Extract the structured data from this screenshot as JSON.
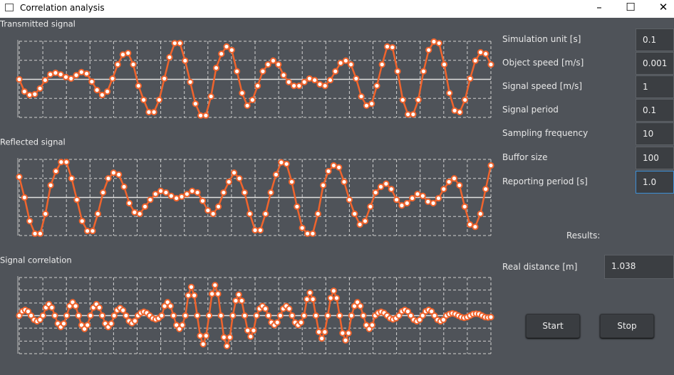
{
  "window": {
    "title": "Correlation analysis"
  },
  "chart_data": [
    {
      "type": "line",
      "title": "Transmitted signal",
      "color": "#f0642d",
      "grid": true,
      "xlim": [
        0,
        91
      ],
      "xticks": [
        0,
        4.55,
        9.1,
        13.65,
        18.2,
        22.75,
        27.3,
        31.85,
        36.4,
        40.95,
        45.5,
        50.05,
        54.6,
        59.15,
        63.7,
        68.25,
        72.8,
        77.35,
        81.9,
        86.45,
        91
      ],
      "ylim": [
        -1,
        1
      ],
      "yticks": [
        -1,
        -0.5,
        0,
        0.5,
        1
      ],
      "values": [
        0,
        -0.32,
        -0.41,
        -0.39,
        -0.24,
        -0.02,
        0.13,
        0.17,
        0.13,
        0.06,
        0.02,
        0.11,
        0.19,
        0.15,
        -0.06,
        -0.28,
        -0.41,
        -0.32,
        0.02,
        0.39,
        0.65,
        0.69,
        0.39,
        -0.17,
        -0.54,
        -0.86,
        -0.86,
        -0.54,
        0.02,
        0.58,
        0.95,
        0.95,
        0.49,
        -0.07,
        -0.64,
        -0.95,
        -0.95,
        -0.45,
        0.3,
        0.67,
        0.86,
        0.77,
        0.21,
        -0.36,
        -0.69,
        -0.54,
        -0.17,
        0.21,
        0.39,
        0.49,
        0.39,
        0.11,
        -0.07,
        -0.17,
        -0.17,
        -0.07,
        0.02,
        -0.02,
        -0.13,
        -0.17,
        -0.02,
        0.21,
        0.43,
        0.49,
        0.39,
        0.02,
        -0.45,
        -0.69,
        -0.64,
        -0.17,
        0.39,
        0.86,
        0.84,
        0.21,
        -0.54,
        -0.92,
        -0.92,
        -0.54,
        0.21,
        0.77,
        0.99,
        0.95,
        0.39,
        -0.36,
        -0.82,
        -0.86,
        -0.54,
        0.02,
        0.49,
        0.71,
        0.67,
        0.39
      ]
    },
    {
      "type": "line",
      "title": "Reflected signal",
      "color": "#f0642d",
      "grid": true,
      "xlim": [
        0,
        90
      ],
      "xticks": [
        0,
        4.5,
        9,
        13.5,
        18,
        22.5,
        27,
        31.5,
        36,
        40.5,
        45,
        49.5,
        54,
        58.5,
        63,
        67.5,
        72,
        76.5,
        81,
        85.5,
        90
      ],
      "ylim": [
        -1,
        1
      ],
      "yticks": [
        -1,
        -0.5,
        0,
        0.5,
        1
      ],
      "values": [
        0.54,
        0,
        -0.62,
        -0.95,
        -0.95,
        -0.43,
        0.32,
        0.69,
        0.93,
        0.93,
        0.5,
        -0.06,
        -0.62,
        -0.88,
        -0.88,
        -0.43,
        0.13,
        0.5,
        0.65,
        0.6,
        0.28,
        -0.15,
        -0.39,
        -0.43,
        -0.24,
        -0.06,
        0.09,
        0.17,
        0.13,
        0.04,
        -0.02,
        0.02,
        0.09,
        0.17,
        0.13,
        -0.09,
        -0.34,
        -0.43,
        -0.24,
        0.13,
        0.41,
        0.65,
        0.5,
        0.13,
        -0.43,
        -0.86,
        -0.86,
        -0.43,
        0.13,
        0.6,
        0.92,
        0.88,
        0.41,
        -0.24,
        -0.8,
        -0.95,
        -0.95,
        -0.43,
        0.32,
        0.69,
        0.84,
        0.79,
        0.41,
        -0.06,
        -0.43,
        -0.71,
        -0.62,
        -0.24,
        0.13,
        0.28,
        0.36,
        0.22,
        -0.06,
        -0.21,
        -0.15,
        -0.02,
        0.09,
        0.04,
        -0.11,
        -0.15,
        -0.02,
        0.22,
        0.41,
        0.5,
        0.32,
        -0.24,
        -0.71,
        -0.77,
        -0.43,
        0.22,
        0.84
      ]
    },
    {
      "type": "line",
      "title": "Signal correlation",
      "color": "#f0642d",
      "grid": true,
      "xlim": [
        0,
        159
      ],
      "xticks": [
        0,
        7.95,
        15.9,
        23.85,
        31.8,
        39.75,
        47.7,
        55.65,
        63.6,
        71.55,
        79.5,
        87.45,
        95.4,
        103.35,
        111.3,
        119.25,
        127.2,
        135.15,
        143.1,
        151.05,
        159
      ],
      "ylim": [
        -1,
        1
      ],
      "yticks": [
        -1,
        -0.67,
        -0.33,
        0,
        0.33,
        0.67,
        1
      ],
      "values": [
        0,
        0.11,
        0.15,
        0.11,
        0,
        -0.11,
        -0.15,
        -0.11,
        0,
        0.21,
        0.3,
        0.21,
        0,
        -0.21,
        -0.3,
        -0.21,
        0,
        0.25,
        0.35,
        0.25,
        0,
        -0.25,
        -0.35,
        -0.25,
        0,
        0.21,
        0.3,
        0.21,
        0,
        -0.21,
        -0.3,
        -0.21,
        0,
        0.14,
        0.2,
        0.14,
        0,
        -0.14,
        -0.2,
        -0.14,
        0,
        0.07,
        0.1,
        0.07,
        0,
        -0.07,
        -0.1,
        -0.07,
        0,
        0.25,
        0.35,
        0.25,
        0,
        -0.25,
        -0.35,
        -0.25,
        0,
        0.53,
        0.75,
        0.53,
        0,
        -0.53,
        -0.75,
        -0.53,
        0,
        0.57,
        0.8,
        0.57,
        0,
        -0.57,
        -0.8,
        -0.57,
        0,
        0.39,
        0.55,
        0.39,
        0,
        -0.39,
        -0.55,
        -0.39,
        0,
        0.18,
        0.25,
        0.18,
        0,
        -0.18,
        -0.25,
        -0.18,
        0,
        0.18,
        0.25,
        0.18,
        0,
        -0.18,
        -0.25,
        -0.18,
        0,
        0.43,
        0.6,
        0.43,
        0,
        -0.43,
        -0.6,
        -0.43,
        0,
        0.46,
        0.65,
        0.46,
        0,
        -0.46,
        -0.65,
        -0.46,
        0,
        0.25,
        0.35,
        0.25,
        0,
        -0.25,
        -0.35,
        -0.25,
        0,
        0.07,
        0.1,
        0.07,
        0,
        -0.07,
        -0.1,
        -0.07,
        0,
        0.11,
        0.15,
        0.11,
        0,
        -0.11,
        -0.15,
        -0.11,
        0,
        0.11,
        0.15,
        0.11,
        0,
        -0.11,
        -0.15,
        -0.11,
        0,
        0.04,
        0.06,
        0.04,
        0,
        -0.04,
        -0.06,
        -0.04,
        0,
        0.04,
        0.05,
        0.04,
        0,
        -0.04,
        -0.05,
        -0.04
      ]
    }
  ],
  "form": {
    "fields": [
      {
        "label": "Simulation unit [s]",
        "value": "0.1"
      },
      {
        "label": "Object speed [m/s]",
        "value": "0.001"
      },
      {
        "label": "Signal speed [m/s]",
        "value": "1"
      },
      {
        "label": "Signal period",
        "value": "0.1"
      },
      {
        "label": "Sampling frequency",
        "value": "10"
      },
      {
        "label": "Buffor size",
        "value": "100"
      },
      {
        "label": "Reporting period [s]",
        "value": "1.0"
      }
    ],
    "results_label": "Results:",
    "result": {
      "label": "Real distance [m]",
      "value": "1.038"
    },
    "buttons": [
      "Start",
      "Stop"
    ]
  }
}
